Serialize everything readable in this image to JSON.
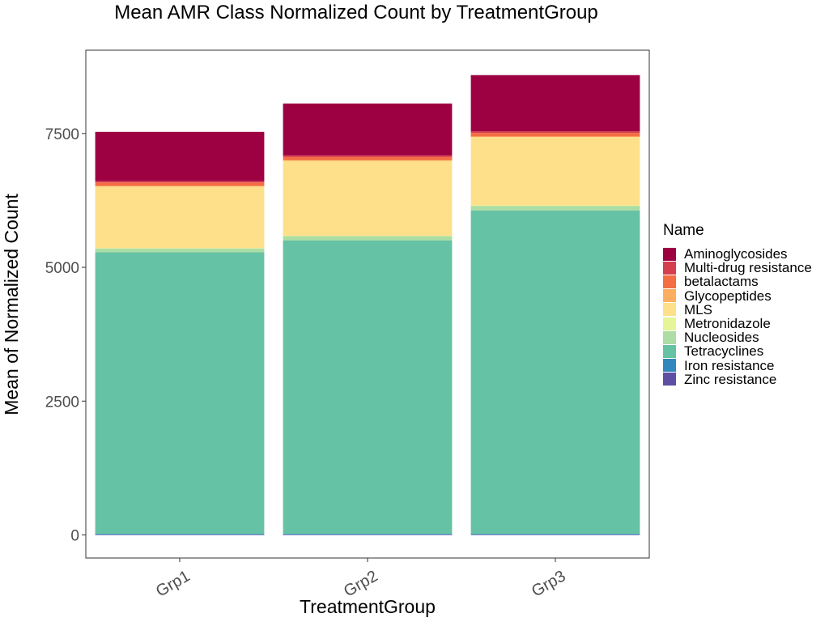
{
  "chart_data": {
    "type": "bar",
    "stacked": true,
    "title": "Mean AMR Class Normalized Count by TreatmentGroup",
    "xlabel": "TreatmentGroup",
    "ylabel": "Mean of Normalized Count",
    "categories": [
      "Grp1",
      "Grp2",
      "Grp3"
    ],
    "yticks": [
      0,
      2500,
      5000,
      7500
    ],
    "ylim": [
      -420,
      9040
    ],
    "legend_title": "Name",
    "legend_position": "right",
    "grid": false,
    "series": [
      {
        "name": "Aminoglycosides",
        "color": "#9E0142",
        "values": [
          920,
          970,
          1050
        ]
      },
      {
        "name": "Multi-drug resistance",
        "color": "#D53E4F",
        "values": [
          25,
          30,
          30
        ]
      },
      {
        "name": "betalactams",
        "color": "#F46D43",
        "values": [
          65,
          60,
          65
        ]
      },
      {
        "name": "Glycopeptides",
        "color": "#FDAE61",
        "values": [
          10,
          10,
          10
        ]
      },
      {
        "name": "MLS",
        "color": "#FEE08B",
        "values": [
          1150,
          1400,
          1280
        ]
      },
      {
        "name": "Metronidazole",
        "color": "#E6F598",
        "values": [
          5,
          5,
          5
        ]
      },
      {
        "name": "Nucleosides",
        "color": "#ABDDA4",
        "values": [
          75,
          85,
          90
        ]
      },
      {
        "name": "Tetracyclines",
        "color": "#66C2A5",
        "values": [
          5260,
          5480,
          6040
        ]
      },
      {
        "name": "Iron resistance",
        "color": "#3288BD",
        "values": [
          15,
          15,
          15
        ]
      },
      {
        "name": "Zinc resistance",
        "color": "#5E4FA2",
        "values": [
          5,
          5,
          5
        ]
      }
    ]
  }
}
